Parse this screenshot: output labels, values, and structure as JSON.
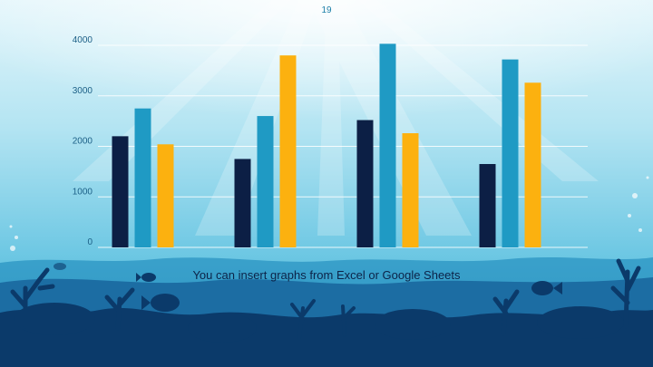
{
  "slide": {
    "page_number": "19",
    "caption": "You can insert graphs from Excel or Google Sheets"
  },
  "colors": {
    "sky_top": "#dff4fa",
    "sky_mid": "#9fdcee",
    "water": "#43b2d6",
    "reef_light": "#2a93c2",
    "reef_mid": "#1c6da3",
    "reef_dark": "#0b3a6a",
    "gridline": "#ffffff"
  },
  "chart_data": {
    "type": "bar",
    "categories": [
      "",
      "",
      "",
      ""
    ],
    "series": [
      {
        "values": [
          2200,
          1750,
          2520,
          1650
        ],
        "color": "#0c1f45"
      },
      {
        "values": [
          2750,
          2600,
          4030,
          3720
        ],
        "color": "#1f9ac4"
      },
      {
        "values": [
          2040,
          3800,
          2260,
          3260
        ],
        "color": "#fcb10f"
      }
    ],
    "ylim": [
      0,
      4000
    ],
    "yticks": [
      "0",
      "1000",
      "2000",
      "3000",
      "4000"
    ],
    "grid": true,
    "legend": "none"
  }
}
